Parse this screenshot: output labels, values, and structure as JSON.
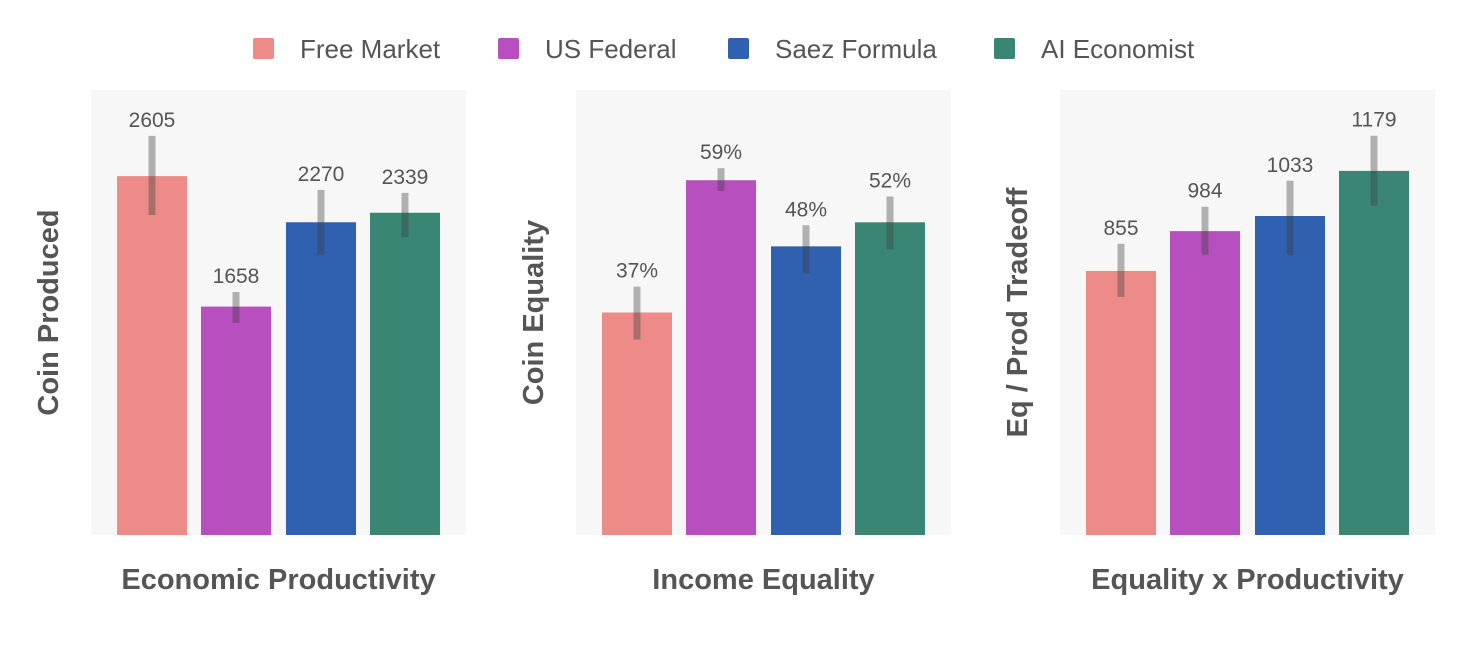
{
  "chart_data": {
    "type": "bar",
    "legend": {
      "placement": "top",
      "entries": [
        {
          "name": "Free Market",
          "color": "#EC8B87"
        },
        {
          "name": "US Federal",
          "color": "#B84FBE"
        },
        {
          "name": "Saez Formula",
          "color": "#3060B0"
        },
        {
          "name": "AI Economist",
          "color": "#3A8675"
        }
      ]
    },
    "grid": false,
    "panels": [
      {
        "xlabel": "Economic Productivity",
        "ylabel": "Coin Produced",
        "ylim": [
          0,
          3230
        ],
        "categories": [
          "Free Market",
          "US Federal",
          "Saez Formula",
          "AI Economist"
        ],
        "values": [
          2605,
          1658,
          2270,
          2339
        ],
        "value_labels": [
          "2605",
          "1658",
          "2270",
          "2339"
        ],
        "error_bars": [
          [
            2323,
            2897
          ],
          [
            1539,
            1764
          ],
          [
            2033,
            2505
          ],
          [
            2163,
            2483
          ]
        ]
      },
      {
        "xlabel": "Income Equality",
        "ylabel": "Coin Equality",
        "ylim": [
          0,
          74
        ],
        "categories": [
          "Free Market",
          "US Federal",
          "Saez Formula",
          "AI Economist"
        ],
        "values": [
          37,
          59,
          48,
          52
        ],
        "value_labels": [
          "37%",
          "59%",
          "48%",
          "52%"
        ],
        "error_bars": [
          [
            32.5,
            41.3
          ],
          [
            57.2,
            61
          ],
          [
            43.5,
            51.5
          ],
          [
            47.5,
            56.3
          ]
        ]
      },
      {
        "xlabel": "Equality x Productivity",
        "ylabel": "Eq / Prod Tradeoff",
        "ylim": [
          0,
          1441
        ],
        "categories": [
          "Free Market",
          "US Federal",
          "Saez Formula",
          "AI Economist"
        ],
        "values": [
          855,
          984,
          1033,
          1179
        ],
        "value_labels": [
          "855",
          "984",
          "1033",
          "1179"
        ],
        "error_bars": [
          [
            771,
            943
          ],
          [
            907,
            1063
          ],
          [
            907,
            1147
          ],
          [
            1066,
            1293
          ]
        ]
      }
    ]
  }
}
